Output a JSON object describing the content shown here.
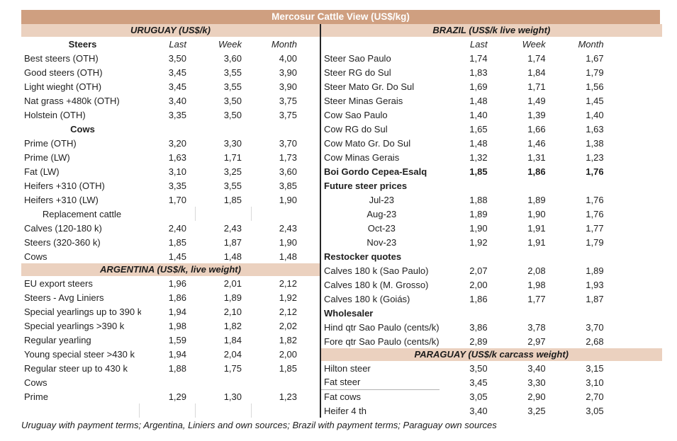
{
  "title": "Mercosur Cattle View (US$/kg)",
  "footnote": "Uruguay with payment terms; Argentina, Liniers and own sources; Brazil with payment terms; Paraguay own sources",
  "columns": [
    "Last",
    "Week",
    "Month"
  ],
  "colors": {
    "title_bar": "#cf9f80",
    "title_text": "#ffffff",
    "section_bar": "#ebd1bf",
    "text": "#1f1f1f"
  },
  "left": {
    "uruguay": {
      "header": "URUGUAY (US$/k)",
      "group_label": "Steers",
      "rows": [
        {
          "label": "Best steers (OTH)",
          "values": [
            "3,50",
            "3,60",
            "4,00"
          ]
        },
        {
          "label": "Good steers (OTH)",
          "values": [
            "3,45",
            "3,55",
            "3,90"
          ]
        },
        {
          "label": "Light wieght (OTH)",
          "values": [
            "3,45",
            "3,55",
            "3,90"
          ]
        },
        {
          "label": "Nat grass +480k (OTH)",
          "values": [
            "3,40",
            "3,50",
            "3,75"
          ]
        },
        {
          "label": "Holstein (OTH)",
          "values": [
            "3,35",
            "3,50",
            "3,75"
          ]
        },
        {
          "label": "Cows",
          "values": [],
          "style": "center-bold"
        },
        {
          "label": "Prime (OTH)",
          "values": [
            "3,20",
            "3,30",
            "3,70"
          ]
        },
        {
          "label": "Prime (LW)",
          "values": [
            "1,63",
            "1,71",
            "1,73"
          ]
        },
        {
          "label": "Fat (LW)",
          "values": [
            "3,10",
            "3,25",
            "3,60"
          ]
        },
        {
          "label": "Heifers +310 (OTH)",
          "values": [
            "3,35",
            "3,55",
            "3,85"
          ]
        },
        {
          "label": "Heifers +310 (LW)",
          "values": [
            "1,70",
            "1,85",
            "1,90"
          ]
        },
        {
          "label": "Replacement cattle",
          "values": [],
          "style": "center ticks"
        },
        {
          "label": "Calves (120-180 k)",
          "values": [
            "2,40",
            "2,43",
            "2,43"
          ]
        },
        {
          "label": "Steers (320-360 k)",
          "values": [
            "1,85",
            "1,87",
            "1,90"
          ]
        },
        {
          "label": "Cows",
          "values": [
            "1,45",
            "1,48",
            "1,48"
          ]
        }
      ]
    },
    "argentina": {
      "header": "ARGENTINA (US$/k, live weight)",
      "rows": [
        {
          "label": "EU export steers",
          "values": [
            "1,96",
            "2,01",
            "2,12"
          ]
        },
        {
          "label": "Steers - Avg Liniers",
          "values": [
            "1,86",
            "1,89",
            "1,92"
          ]
        },
        {
          "label": "Special yearlings up to 390 k",
          "values": [
            "1,94",
            "2,10",
            "2,12"
          ]
        },
        {
          "label": "Special yearlings >390 k",
          "values": [
            "1,98",
            "1,82",
            "2,02"
          ]
        },
        {
          "label": "Regular yearling",
          "values": [
            "1,59",
            "1,84",
            "1,82"
          ]
        },
        {
          "label": "Young special steer >430 k",
          "values": [
            "1,94",
            "2,04",
            "2,00"
          ]
        },
        {
          "label": "Regular steer up to 430 k",
          "values": [
            "1,88",
            "1,75",
            "1,85"
          ]
        },
        {
          "label": "Cows",
          "values": []
        },
        {
          "label": "Prime",
          "values": [
            "1,29",
            "1,30",
            "1,23"
          ]
        },
        {
          "label": "",
          "values": [],
          "style": "empty"
        }
      ]
    }
  },
  "right": {
    "brazil": {
      "header": "BRAZIL  (US$/k live weight)",
      "group_label": "",
      "rows": [
        {
          "label": "Steer Sao Paulo",
          "values": [
            "1,74",
            "1,74",
            "1,67"
          ]
        },
        {
          "label": "Steer RG do Sul",
          "values": [
            "1,83",
            "1,84",
            "1,79"
          ]
        },
        {
          "label": "Steer Mato Gr. Do Sul",
          "values": [
            "1,69",
            "1,71",
            "1,56"
          ]
        },
        {
          "label": "Steer Minas Gerais",
          "values": [
            "1,48",
            "1,49",
            "1,45"
          ]
        },
        {
          "label": "Cow Sao Paulo",
          "values": [
            "1,40",
            "1,39",
            "1,40"
          ]
        },
        {
          "label": "Cow RG do Sul",
          "values": [
            "1,65",
            "1,66",
            "1,63"
          ]
        },
        {
          "label": "Cow Mato Gr. Do Sul",
          "values": [
            "1,48",
            "1,46",
            "1,38"
          ]
        },
        {
          "label": "Cow Minas Gerais",
          "values": [
            "1,32",
            "1,31",
            "1,23"
          ]
        },
        {
          "label": "Boi Gordo Cepea-Esalq",
          "values": [
            "1,85",
            "1,86",
            "1,76"
          ],
          "style": "bold"
        },
        {
          "label": "Future steer prices",
          "values": [],
          "style": "left-bold"
        },
        {
          "label": "Jul-23",
          "values": [
            "1,88",
            "1,89",
            "1,76"
          ],
          "style": "month"
        },
        {
          "label": "Aug-23",
          "values": [
            "1,89",
            "1,90",
            "1,76"
          ],
          "style": "month"
        },
        {
          "label": "Oct-23",
          "values": [
            "1,90",
            "1,91",
            "1,77"
          ],
          "style": "month"
        },
        {
          "label": "Nov-23",
          "values": [
            "1,92",
            "1,91",
            "1,79"
          ],
          "style": "month"
        },
        {
          "label": "Restocker quotes",
          "values": [],
          "style": "left-bold"
        },
        {
          "label": "Calves 180 k (Sao Paulo)",
          "values": [
            "2,07",
            "2,08",
            "1,89"
          ]
        },
        {
          "label": "Calves 180 k (M. Grosso)",
          "values": [
            "2,00",
            "1,98",
            "1,93"
          ]
        },
        {
          "label": "Calves 180 k (Goiás)",
          "values": [
            "1,86",
            "1,77",
            "1,87"
          ]
        },
        {
          "label": "Wholesaler",
          "values": [],
          "style": "left-bold"
        },
        {
          "label": "Hind qtr Sao Paulo (cents/k)",
          "values": [
            "3,86",
            "3,78",
            "3,70"
          ]
        },
        {
          "label": "Fore qtr Sao Paulo (cents/k)",
          "values": [
            "2,89",
            "2,97",
            "2,68"
          ]
        }
      ]
    },
    "paraguay": {
      "header": "PARAGUAY  (US$/k carcass weight)",
      "rows": [
        {
          "label": "Hilton steer",
          "values": [
            "3,50",
            "3,40",
            "3,15"
          ]
        },
        {
          "label": "Fat steer",
          "values": [
            "3,45",
            "3,30",
            "3,10"
          ],
          "style": "underline"
        },
        {
          "label": "Fat cows",
          "values": [
            "3,05",
            "2,90",
            "2,70"
          ]
        },
        {
          "label": "Heifer 4 th",
          "values": [
            "3,40",
            "3,25",
            "3,05"
          ]
        }
      ]
    }
  }
}
